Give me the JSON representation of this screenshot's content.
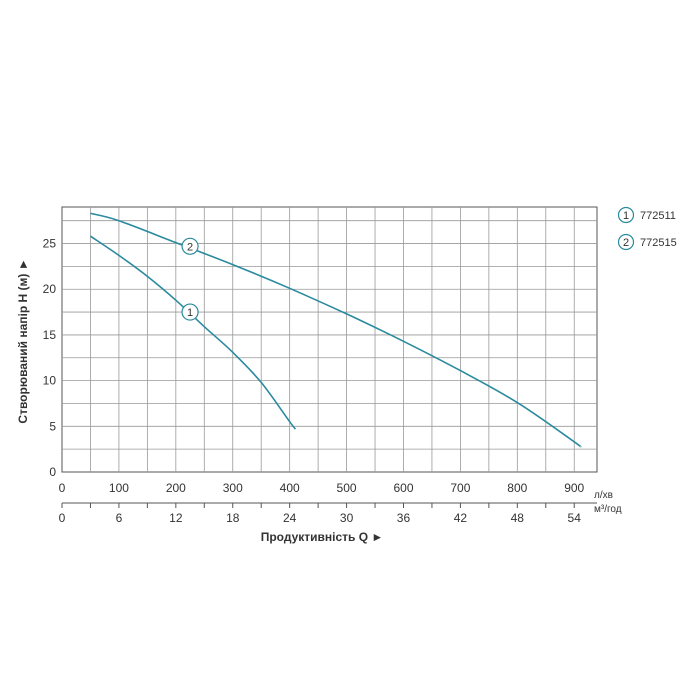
{
  "chart_data": {
    "type": "line",
    "ylabel": "Створюваний напір H (м) ►",
    "xlabel": "Продуктивність  Q  ►",
    "x_unit_primary": "л/хв",
    "x_unit_secondary": "м³/год",
    "ylim": [
      0,
      29
    ],
    "xlim_primary": [
      0,
      940
    ],
    "yticks": [
      "0",
      "5",
      "10",
      "15",
      "20",
      "25"
    ],
    "xticks_primary": [
      "0",
      "100",
      "200",
      "300",
      "400",
      "500",
      "600",
      "700",
      "800",
      "900"
    ],
    "xticks_secondary": [
      "0",
      "6",
      "12",
      "18",
      "24",
      "30",
      "36",
      "42",
      "48",
      "54"
    ],
    "grid": true,
    "legend_position": "top-right",
    "series": [
      {
        "name": "772511",
        "marker": "1",
        "color": "#2a8a9e",
        "x": [
          50,
          100,
          150,
          200,
          250,
          300,
          350,
          400,
          410
        ],
        "y": [
          25.8,
          23.7,
          21.4,
          18.8,
          15.9,
          13.1,
          9.8,
          5.5,
          4.7
        ]
      },
      {
        "name": "772515",
        "marker": "2",
        "color": "#2a8a9e",
        "x": [
          50,
          100,
          200,
          300,
          400,
          500,
          600,
          700,
          800,
          900,
          910
        ],
        "y": [
          28.3,
          27.5,
          25.1,
          22.7,
          20.1,
          17.3,
          14.3,
          11.1,
          7.6,
          3.3,
          2.8
        ]
      }
    ],
    "marker_positions": [
      {
        "label": "1",
        "x": 225,
        "y": 17.5
      },
      {
        "label": "2",
        "x": 225,
        "y": 24.7
      }
    ]
  }
}
